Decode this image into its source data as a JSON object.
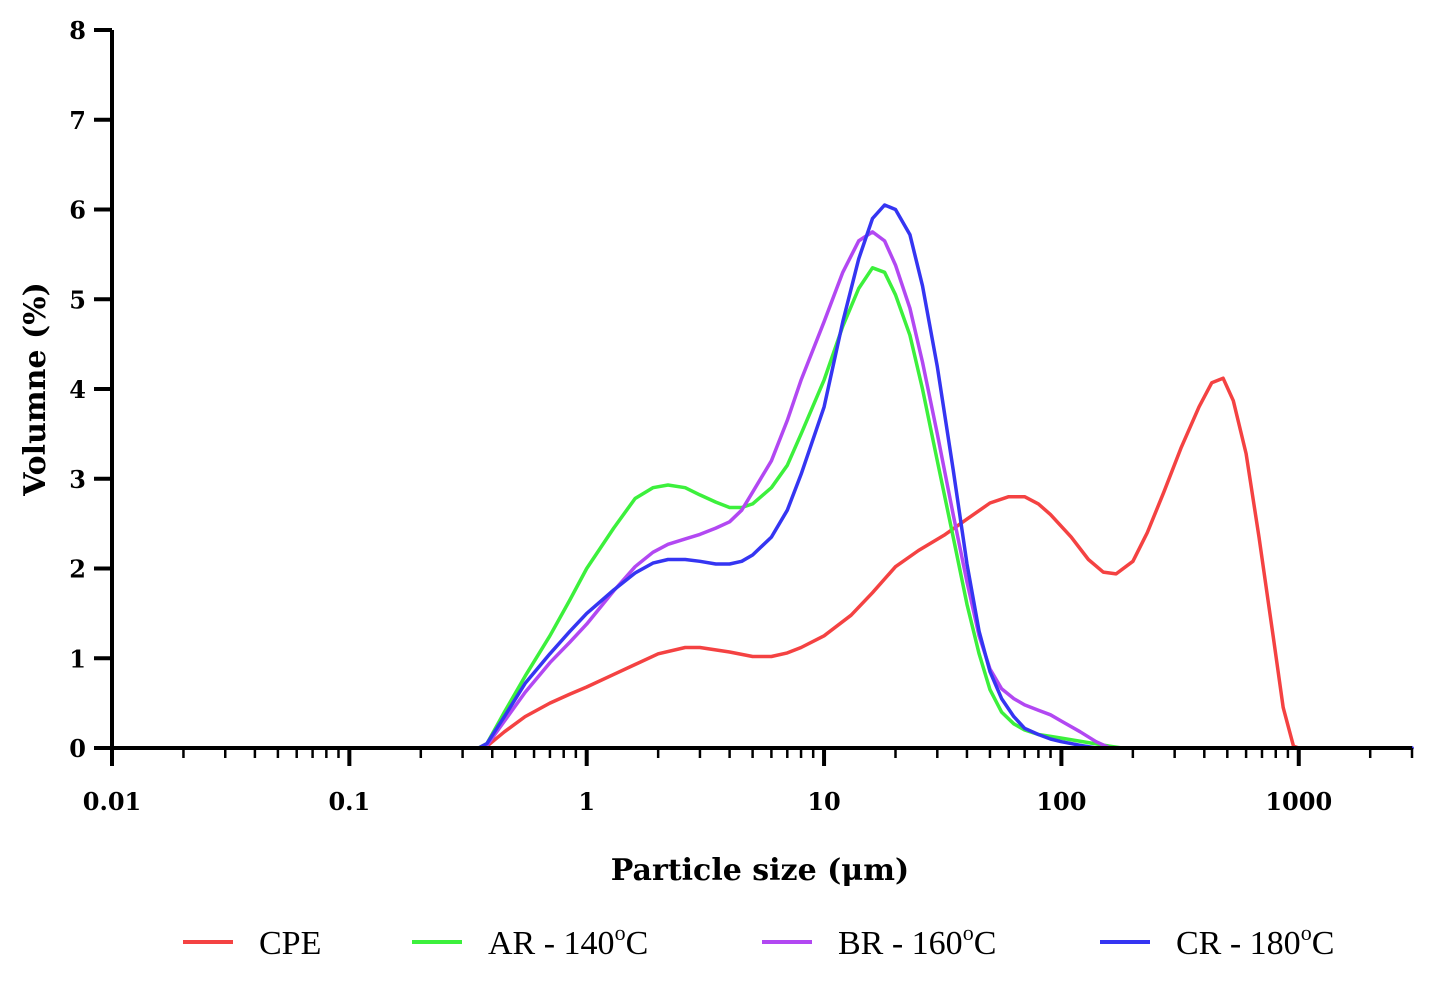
{
  "chart_data": {
    "type": "line",
    "title": "",
    "xlabel": "Particle size (μm)",
    "ylabel": "Volumne (%)",
    "xscale": "log",
    "xlim": [
      0.01,
      3000
    ],
    "ylim": [
      0,
      8
    ],
    "x_tick_values": [
      0.01,
      0.1,
      1,
      10,
      100,
      1000
    ],
    "x_tick_labels": [
      "0.01",
      "0.1",
      "1",
      "10",
      "100",
      "1000"
    ],
    "y_tick_values": [
      0,
      1,
      2,
      3,
      4,
      5,
      6,
      7,
      8
    ],
    "y_tick_labels": [
      "0",
      "1",
      "2",
      "3",
      "4",
      "5",
      "6",
      "7",
      "8"
    ],
    "grid": false,
    "legend_position": "bottom",
    "series": [
      {
        "name": "CPE",
        "label_main": "CPE",
        "label_sup": "",
        "label_tail": "",
        "color": "#f44242",
        "points": [
          [
            0.01,
            0
          ],
          [
            0.35,
            0
          ],
          [
            0.38,
            0.02
          ],
          [
            0.45,
            0.18
          ],
          [
            0.55,
            0.35
          ],
          [
            0.7,
            0.5
          ],
          [
            0.85,
            0.6
          ],
          [
            1.0,
            0.68
          ],
          [
            1.3,
            0.82
          ],
          [
            1.6,
            0.93
          ],
          [
            2.0,
            1.05
          ],
          [
            2.6,
            1.12
          ],
          [
            3.0,
            1.12
          ],
          [
            4.0,
            1.07
          ],
          [
            5.0,
            1.02
          ],
          [
            6.0,
            1.02
          ],
          [
            7.0,
            1.06
          ],
          [
            8.0,
            1.12
          ],
          [
            10,
            1.25
          ],
          [
            13,
            1.48
          ],
          [
            16,
            1.73
          ],
          [
            20,
            2.02
          ],
          [
            25,
            2.2
          ],
          [
            32,
            2.37
          ],
          [
            40,
            2.55
          ],
          [
            50,
            2.73
          ],
          [
            60,
            2.8
          ],
          [
            70,
            2.8
          ],
          [
            80,
            2.72
          ],
          [
            90,
            2.6
          ],
          [
            110,
            2.35
          ],
          [
            130,
            2.1
          ],
          [
            150,
            1.96
          ],
          [
            170,
            1.94
          ],
          [
            200,
            2.08
          ],
          [
            230,
            2.4
          ],
          [
            270,
            2.85
          ],
          [
            320,
            3.35
          ],
          [
            380,
            3.8
          ],
          [
            430,
            4.07
          ],
          [
            480,
            4.12
          ],
          [
            530,
            3.87
          ],
          [
            600,
            3.28
          ],
          [
            680,
            2.35
          ],
          [
            780,
            1.25
          ],
          [
            860,
            0.45
          ],
          [
            950,
            0.02
          ],
          [
            1000,
            0
          ],
          [
            3000,
            0
          ]
        ]
      },
      {
        "name": "AR - 140°C",
        "label_main": "AR - 140",
        "label_sup": "o",
        "label_tail": "C",
        "color": "#3cf03c",
        "points": [
          [
            0.01,
            0
          ],
          [
            0.35,
            0
          ],
          [
            0.38,
            0.05
          ],
          [
            0.45,
            0.4
          ],
          [
            0.55,
            0.8
          ],
          [
            0.7,
            1.25
          ],
          [
            0.85,
            1.65
          ],
          [
            1.0,
            2.0
          ],
          [
            1.3,
            2.45
          ],
          [
            1.6,
            2.78
          ],
          [
            1.9,
            2.9
          ],
          [
            2.2,
            2.93
          ],
          [
            2.6,
            2.9
          ],
          [
            3.0,
            2.82
          ],
          [
            3.5,
            2.74
          ],
          [
            4.0,
            2.68
          ],
          [
            4.5,
            2.68
          ],
          [
            5.0,
            2.72
          ],
          [
            6.0,
            2.9
          ],
          [
            7.0,
            3.15
          ],
          [
            8.0,
            3.5
          ],
          [
            10,
            4.1
          ],
          [
            12,
            4.7
          ],
          [
            14,
            5.12
          ],
          [
            16,
            5.35
          ],
          [
            18,
            5.3
          ],
          [
            20,
            5.05
          ],
          [
            23,
            4.6
          ],
          [
            26,
            4.0
          ],
          [
            30,
            3.2
          ],
          [
            35,
            2.35
          ],
          [
            40,
            1.6
          ],
          [
            45,
            1.05
          ],
          [
            50,
            0.65
          ],
          [
            56,
            0.4
          ],
          [
            63,
            0.27
          ],
          [
            70,
            0.2
          ],
          [
            80,
            0.15
          ],
          [
            90,
            0.13
          ],
          [
            100,
            0.11
          ],
          [
            130,
            0.06
          ],
          [
            160,
            0.02
          ],
          [
            180,
            0
          ],
          [
            3000,
            0
          ]
        ]
      },
      {
        "name": "BR - 160°C",
        "label_main": "BR - 160",
        "label_sup": "o",
        "label_tail": "C",
        "color": "#b248f2",
        "points": [
          [
            0.01,
            0
          ],
          [
            0.35,
            0
          ],
          [
            0.38,
            0.03
          ],
          [
            0.45,
            0.3
          ],
          [
            0.55,
            0.62
          ],
          [
            0.7,
            0.95
          ],
          [
            0.85,
            1.18
          ],
          [
            1.0,
            1.38
          ],
          [
            1.3,
            1.75
          ],
          [
            1.6,
            2.02
          ],
          [
            1.9,
            2.18
          ],
          [
            2.2,
            2.27
          ],
          [
            2.6,
            2.33
          ],
          [
            3.0,
            2.38
          ],
          [
            3.5,
            2.45
          ],
          [
            4.0,
            2.52
          ],
          [
            4.5,
            2.65
          ],
          [
            5.0,
            2.85
          ],
          [
            6.0,
            3.2
          ],
          [
            7.0,
            3.65
          ],
          [
            8.0,
            4.1
          ],
          [
            10,
            4.75
          ],
          [
            12,
            5.3
          ],
          [
            14,
            5.65
          ],
          [
            16,
            5.75
          ],
          [
            18,
            5.65
          ],
          [
            20,
            5.38
          ],
          [
            23,
            4.9
          ],
          [
            26,
            4.3
          ],
          [
            30,
            3.5
          ],
          [
            35,
            2.6
          ],
          [
            40,
            1.85
          ],
          [
            45,
            1.25
          ],
          [
            50,
            0.88
          ],
          [
            56,
            0.66
          ],
          [
            63,
            0.55
          ],
          [
            70,
            0.48
          ],
          [
            80,
            0.42
          ],
          [
            90,
            0.37
          ],
          [
            100,
            0.3
          ],
          [
            120,
            0.18
          ],
          [
            140,
            0.07
          ],
          [
            160,
            0
          ],
          [
            3000,
            0
          ]
        ]
      },
      {
        "name": "CR - 180°C",
        "label_main": "CR - 180",
        "label_sup": "o",
        "label_tail": "C",
        "color": "#3535f2",
        "points": [
          [
            0.01,
            0
          ],
          [
            0.35,
            0
          ],
          [
            0.38,
            0.05
          ],
          [
            0.45,
            0.35
          ],
          [
            0.55,
            0.72
          ],
          [
            0.7,
            1.05
          ],
          [
            0.85,
            1.3
          ],
          [
            1.0,
            1.5
          ],
          [
            1.3,
            1.76
          ],
          [
            1.6,
            1.95
          ],
          [
            1.9,
            2.06
          ],
          [
            2.2,
            2.1
          ],
          [
            2.6,
            2.1
          ],
          [
            3.0,
            2.08
          ],
          [
            3.5,
            2.05
          ],
          [
            4.0,
            2.05
          ],
          [
            4.5,
            2.08
          ],
          [
            5.0,
            2.15
          ],
          [
            6.0,
            2.35
          ],
          [
            7.0,
            2.65
          ],
          [
            8.0,
            3.05
          ],
          [
            10,
            3.8
          ],
          [
            12,
            4.75
          ],
          [
            14,
            5.45
          ],
          [
            16,
            5.9
          ],
          [
            18,
            6.05
          ],
          [
            20,
            6.0
          ],
          [
            23,
            5.72
          ],
          [
            26,
            5.15
          ],
          [
            30,
            4.25
          ],
          [
            35,
            3.1
          ],
          [
            40,
            2.05
          ],
          [
            45,
            1.3
          ],
          [
            50,
            0.85
          ],
          [
            56,
            0.55
          ],
          [
            63,
            0.35
          ],
          [
            70,
            0.22
          ],
          [
            80,
            0.15
          ],
          [
            90,
            0.1
          ],
          [
            100,
            0.07
          ],
          [
            120,
            0.03
          ],
          [
            140,
            0
          ],
          [
            3000,
            0
          ]
        ]
      }
    ]
  }
}
